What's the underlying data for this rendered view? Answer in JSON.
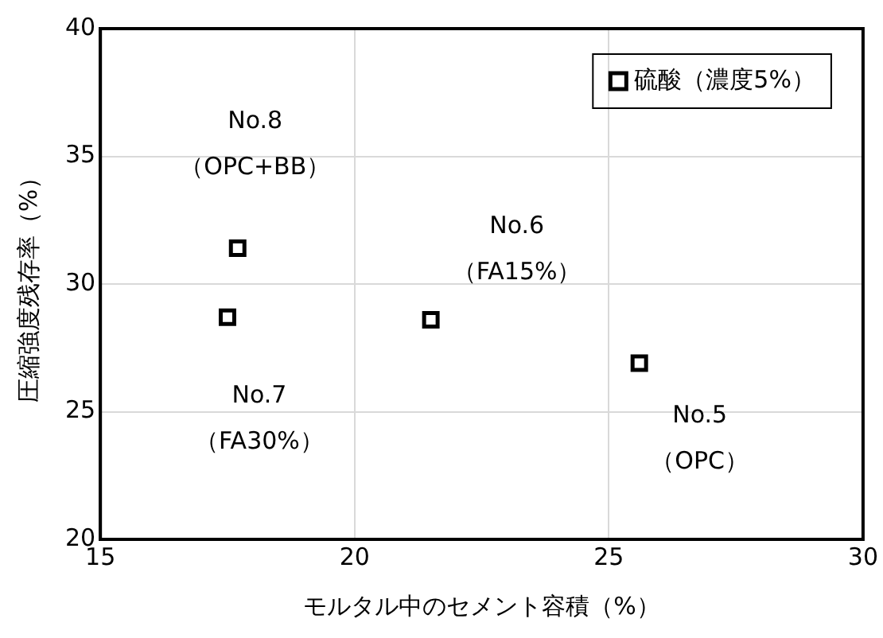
{
  "chart_data": {
    "type": "scatter",
    "xlabel": "モルタル中のセメント容積（%）",
    "ylabel": "圧縮強度残存率（%）",
    "series": [
      {
        "name": "硫酸（濃度5%）",
        "color": "#000000",
        "x": [
          17.7,
          17.5,
          21.5,
          25.6
        ],
        "values": [
          31.4,
          28.7,
          28.6,
          26.9
        ]
      }
    ],
    "xlim": [
      15,
      30
    ],
    "xticks": [
      15,
      20,
      25,
      30
    ],
    "ylim": [
      20,
      40
    ],
    "yticks": [
      20,
      25,
      30,
      35,
      40
    ],
    "grid": true,
    "legend": "top right",
    "marker": "square",
    "annotations": [
      {
        "text": "No.8\n（OPC+BB）",
        "x": 17.7,
        "y": 31.4
      },
      {
        "text": "No.6\n（FA15%）",
        "x": 21.5,
        "y": 28.6
      },
      {
        "text": "No.7\n（FA30%）",
        "x": 17.5,
        "y": 28.7
      },
      {
        "text": "No.5\n（OPC）",
        "x": 25.6,
        "y": 26.9
      }
    ]
  }
}
